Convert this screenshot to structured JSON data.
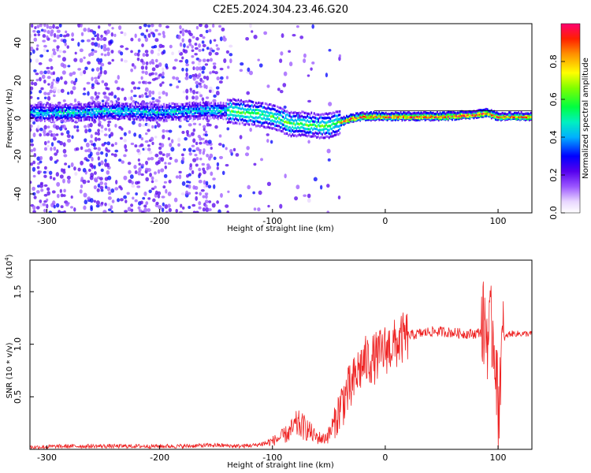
{
  "figure": {
    "title": "C2E5.2024.304.23.46.G20"
  },
  "chart_data": [
    {
      "type": "heatmap",
      "name": "spectrogram",
      "xlabel": "Height of straight line (km)",
      "ylabel": "Frequency (Hz)",
      "xlim": [
        -315,
        130
      ],
      "ylim": [
        -50,
        50
      ],
      "xticks": [
        "-300",
        "-200",
        "-100",
        "0",
        "100"
      ],
      "yticks": [
        "-40",
        "-20",
        "0",
        "20",
        "40"
      ],
      "ridge": {
        "x": [
          -310,
          -270,
          -240,
          -200,
          -170,
          -140,
          -125,
          -110,
          -95,
          -85,
          -75,
          -60,
          -50,
          -40,
          -30,
          -20,
          -10,
          0,
          20,
          50,
          80,
          90,
          95,
          100,
          130
        ],
        "y": [
          3,
          3,
          4,
          3,
          4,
          4,
          3,
          2,
          0,
          -3,
          -3,
          -4,
          -4,
          -2,
          0,
          1,
          1,
          1,
          1,
          1,
          2,
          3,
          2,
          1,
          1
        ]
      },
      "colorbar": {
        "label": "Normalized spectral amplitude",
        "range": [
          0,
          1
        ],
        "ticks": [
          "0.0",
          "0.2",
          "0.4",
          "0.6",
          "0.8"
        ]
      }
    },
    {
      "type": "line",
      "name": "snr",
      "xlabel": "Height of straight line (km)",
      "ylabel": "SNR (10 * v/v)",
      "exponent_label": "(x10",
      "exponent_power": "4",
      "exponent_close": ")",
      "xlim": [
        -315,
        130
      ],
      "ylim": [
        0,
        1.8
      ],
      "xticks": [
        "-300",
        "-200",
        "-100",
        "0",
        "100"
      ],
      "yticks": [
        "0.5",
        "1.0",
        "1.5"
      ],
      "series": [
        {
          "color": "#ee2222",
          "x": [
            -315,
            -280,
            -250,
            -220,
            -180,
            -150,
            -130,
            -115,
            -105,
            -95,
            -85,
            -78,
            -70,
            -62,
            -55,
            -50,
            -45,
            -40,
            -35,
            -30,
            -25,
            -20,
            -15,
            -10,
            -5,
            0,
            5,
            10,
            15,
            20,
            30,
            40,
            50,
            60,
            70,
            80,
            85,
            88,
            92,
            95,
            98,
            100,
            102,
            105,
            110,
            120,
            130
          ],
          "y": [
            0.02,
            0.03,
            0.03,
            0.03,
            0.03,
            0.04,
            0.03,
            0.04,
            0.06,
            0.1,
            0.16,
            0.24,
            0.2,
            0.12,
            0.1,
            0.14,
            0.25,
            0.4,
            0.52,
            0.58,
            0.72,
            0.82,
            0.85,
            0.86,
            0.9,
            0.95,
            0.98,
            1.0,
            1.05,
            1.08,
            1.1,
            1.12,
            1.12,
            1.11,
            1.1,
            1.1,
            1.12,
            1.2,
            1.05,
            1.15,
            0.9,
            0.3,
            0.8,
            1.05,
            1.1,
            1.1,
            1.1
          ]
        }
      ]
    }
  ]
}
